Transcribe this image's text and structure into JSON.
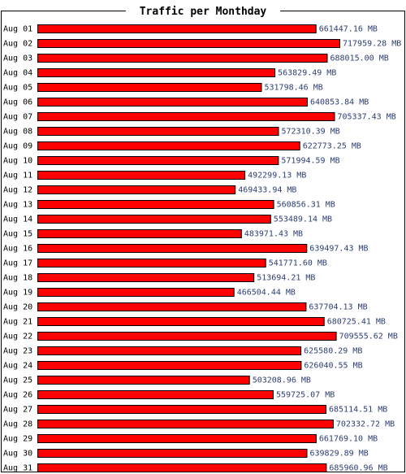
{
  "chart_data": {
    "type": "bar",
    "orientation": "horizontal",
    "title": "Traffic per Monthday",
    "value_suffix": " MB",
    "categories": [
      "Aug 01",
      "Aug 02",
      "Aug 03",
      "Aug 04",
      "Aug 05",
      "Aug 06",
      "Aug 07",
      "Aug 08",
      "Aug 09",
      "Aug 10",
      "Aug 11",
      "Aug 12",
      "Aug 13",
      "Aug 14",
      "Aug 15",
      "Aug 16",
      "Aug 17",
      "Aug 18",
      "Aug 19",
      "Aug 20",
      "Aug 21",
      "Aug 22",
      "Aug 23",
      "Aug 24",
      "Aug 25",
      "Aug 26",
      "Aug 27",
      "Aug 28",
      "Aug 29",
      "Aug 30",
      "Aug 31"
    ],
    "values": [
      661447.16,
      717959.28,
      688015.0,
      563829.49,
      531798.46,
      640853.84,
      705337.43,
      572310.39,
      622773.25,
      571994.59,
      492299.13,
      469433.94,
      560856.31,
      553489.14,
      483971.43,
      639497.43,
      541771.6,
      513694.21,
      466504.44,
      637704.13,
      680725.41,
      709555.62,
      625580.29,
      626040.55,
      503208.96,
      559725.07,
      685114.51,
      702332.72,
      661769.1,
      639829.89,
      685960.96
    ],
    "value_labels": [
      "661447.16",
      "717959.28",
      "688015.00",
      "563829.49",
      "531798.46",
      "640853.84",
      "705337.43",
      "572310.39",
      "622773.25",
      "571994.59",
      "492299.13",
      "469433.94",
      "560856.31",
      "553489.14",
      "483971.43",
      "639497.43",
      "541771.60",
      "513694.21",
      "466504.44",
      "637704.13",
      "680725.41",
      "709555.62",
      "625580.29",
      "626040.55",
      "503208.96",
      "559725.07",
      "685114.51",
      "702332.72",
      "661769.10",
      "639829.89",
      "685960.96"
    ],
    "colors": {
      "bar_fill": "#ff0000",
      "bar_stroke": "#000000",
      "value_text": "#2c3e73",
      "frame": "#000000"
    }
  }
}
